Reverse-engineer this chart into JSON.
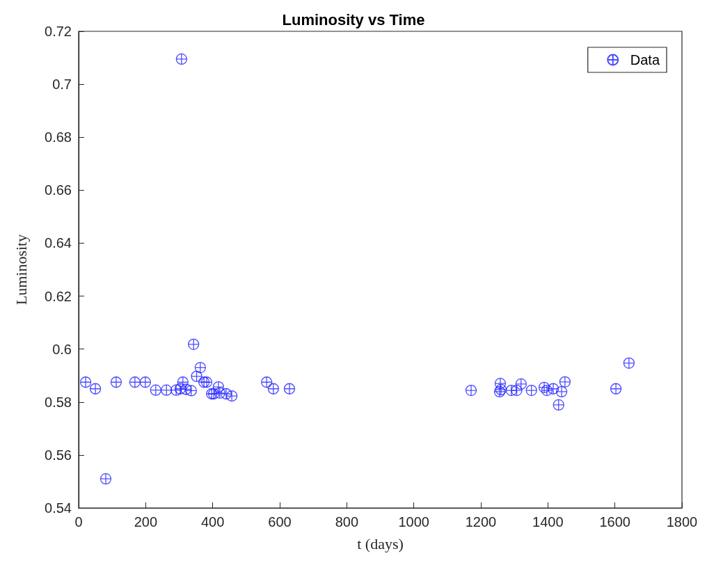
{
  "chart_data": {
    "type": "scatter",
    "title": "Luminosity vs Time",
    "xlabel": "t (days)",
    "ylabel": "Luminosity",
    "xlim": [
      0,
      1800
    ],
    "xticks": [
      0,
      200,
      400,
      600,
      800,
      1000,
      1200,
      1400,
      1600,
      1800
    ],
    "ylim": [
      0.54,
      0.72
    ],
    "yticks": [
      0.54,
      0.56,
      0.58,
      0.6,
      0.62,
      0.64,
      0.66,
      0.68,
      0.7,
      0.72
    ],
    "grid": false,
    "legend": "top right",
    "series": [
      {
        "name": "Data",
        "color": "#1f1fff",
        "x": [
          21,
          50,
          81,
          112,
          168,
          199,
          230,
          262,
          291,
          303,
          307,
          311,
          320,
          336,
          343,
          352,
          363,
          374,
          382,
          397,
          403,
          417,
          421,
          440,
          457,
          561,
          581,
          629,
          1171,
          1256,
          1258,
          1260,
          1291,
          1307,
          1320,
          1351,
          1389,
          1397,
          1416,
          1432,
          1441,
          1451,
          1603,
          1642
        ],
        "values": [
          0.5875,
          0.585,
          0.551,
          0.5875,
          0.5875,
          0.5875,
          0.5845,
          0.5845,
          0.5845,
          0.585,
          0.7095,
          0.5875,
          0.5848,
          0.5843,
          0.6018,
          0.5897,
          0.593,
          0.5875,
          0.5875,
          0.5831,
          0.5831,
          0.5857,
          0.5834,
          0.5831,
          0.5823,
          0.5875,
          0.585,
          0.585,
          0.5844,
          0.5839,
          0.587,
          0.5847,
          0.5844,
          0.5844,
          0.5868,
          0.5844,
          0.5855,
          0.5844,
          0.585,
          0.5789,
          0.5839,
          0.5876,
          0.585,
          0.5947
        ],
        "marker": "cross"
      }
    ]
  }
}
